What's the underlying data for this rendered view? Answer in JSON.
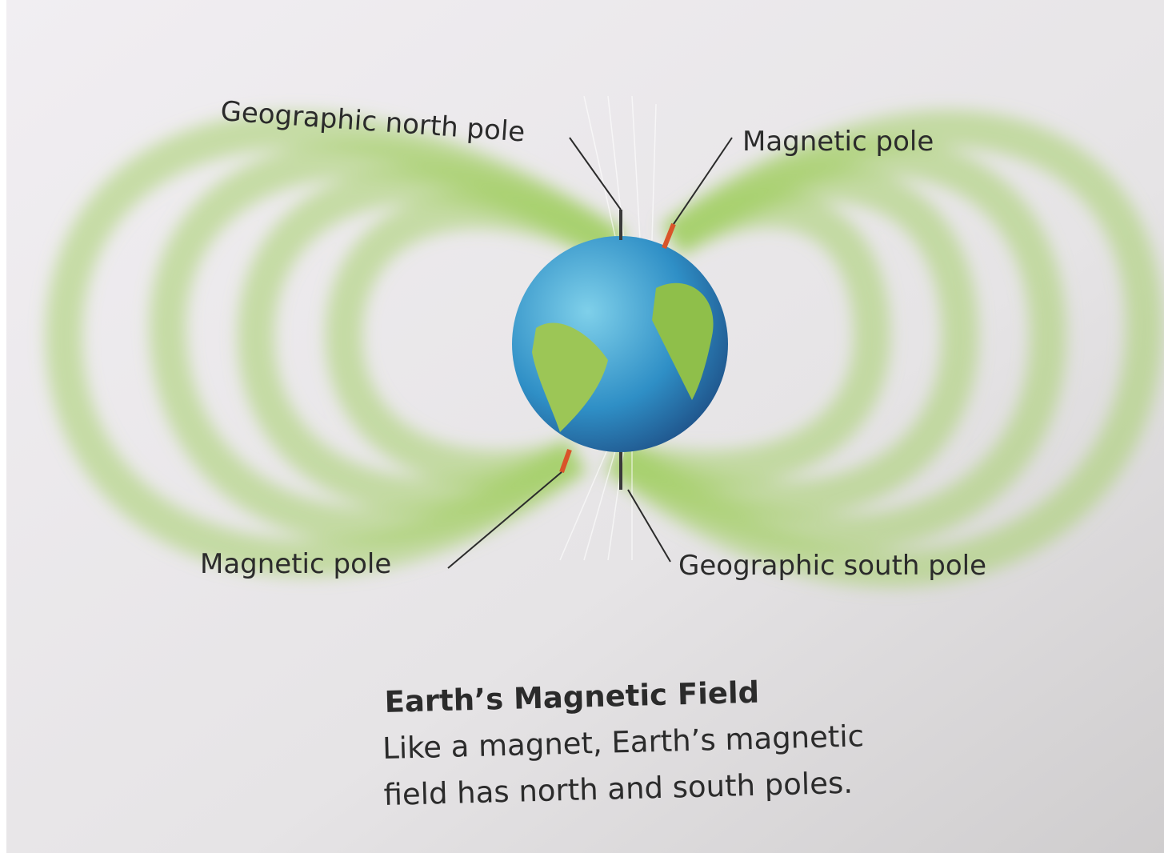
{
  "labels": {
    "geographic_north": "Geographic north pole",
    "magnetic_north": "Magnetic pole",
    "magnetic_south": "Magnetic pole",
    "geographic_south": "Geographic south pole"
  },
  "caption": {
    "title": "Earth’s Magnetic Field",
    "lines": [
      "Like a magnet, Earth’s magnetic",
      "field has north and south poles."
    ]
  }
}
